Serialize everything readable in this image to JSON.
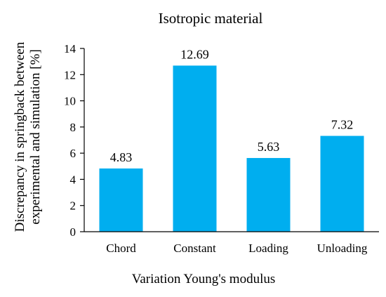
{
  "chart_data": {
    "type": "bar",
    "title": "Isotropic material",
    "ylabel_lines": [
      "Discrepancy in springback between",
      "experimental  and simulation [%]"
    ],
    "xlabel": "Variation Young's modulus",
    "categories": [
      "Chord",
      "Constant",
      "Loading",
      "Unloading"
    ],
    "values": [
      4.83,
      12.69,
      5.63,
      7.32
    ],
    "data_labels": [
      "4.83",
      "12.69",
      "5.63",
      "7.32"
    ],
    "yticks": [
      "0",
      "2",
      "4",
      "6",
      "8",
      "10",
      "12",
      "14"
    ],
    "ylim": [
      0,
      14
    ],
    "grid": false,
    "legend": "none",
    "bar_color": "#00AEEF"
  }
}
